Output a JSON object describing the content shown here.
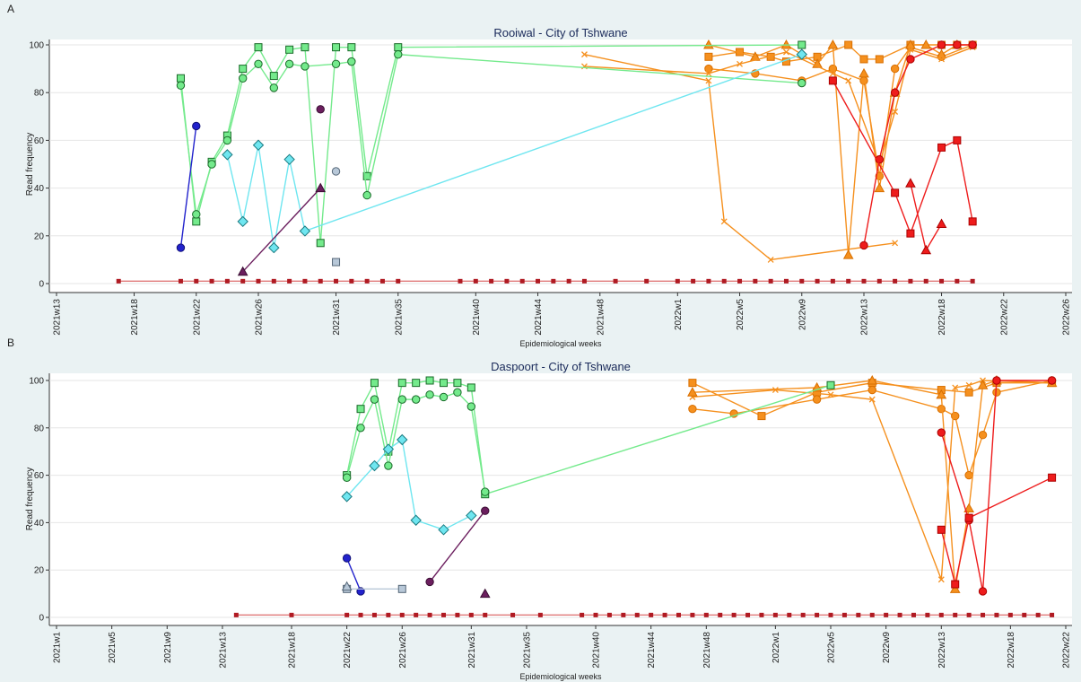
{
  "chart_data": [
    {
      "type": "line",
      "panel": "A",
      "title": "Rooiwal - City of Tshwane",
      "xlabel": "Epidemiological weeks",
      "ylabel": "Read frequency",
      "grid": true,
      "xlim": [
        13,
        78
      ],
      "ylim": [
        0,
        100
      ],
      "yticks": [
        0,
        20,
        40,
        60,
        80,
        100
      ],
      "xticks": [
        {
          "value": 13,
          "label": "2021w13"
        },
        {
          "value": 18,
          "label": "2021w18"
        },
        {
          "value": 22,
          "label": "2021w22"
        },
        {
          "value": 26,
          "label": "2021w26"
        },
        {
          "value": 31,
          "label": "2021w31"
        },
        {
          "value": 35,
          "label": "2021w35"
        },
        {
          "value": 40,
          "label": "2021w40"
        },
        {
          "value": 44,
          "label": "2021w44"
        },
        {
          "value": 48,
          "label": "2021w48"
        },
        {
          "value": 53,
          "label": "2022w1"
        },
        {
          "value": 57,
          "label": "2022w5"
        },
        {
          "value": 61,
          "label": "2022w9"
        },
        {
          "value": 65,
          "label": "2022w13"
        },
        {
          "value": 70,
          "label": "2022w18"
        },
        {
          "value": 74,
          "label": "2022w22"
        },
        {
          "value": 78,
          "label": "2022w26"
        }
      ],
      "series": [
        {
          "color": "#e07a7a",
          "edge": "#b01a22",
          "marker": "dot",
          "x": [
            17,
            21,
            22,
            23,
            24,
            25,
            26,
            27,
            28,
            29,
            30,
            31,
            32,
            33,
            34,
            35,
            39,
            40,
            41,
            42,
            43,
            44,
            45,
            46,
            47,
            49,
            51,
            53,
            54,
            55,
            56,
            57,
            58,
            59,
            60,
            61,
            62,
            63,
            64,
            65,
            66,
            67,
            68,
            69,
            70,
            71,
            72
          ],
          "values": [
            1,
            1,
            1,
            1,
            1,
            1,
            1,
            1,
            1,
            1,
            1,
            1,
            1,
            1,
            1,
            1,
            1,
            1,
            1,
            1,
            1,
            1,
            1,
            1,
            1,
            1,
            1,
            1,
            1,
            1,
            1,
            1,
            1,
            1,
            1,
            1,
            1,
            1,
            1,
            1,
            1,
            1,
            1,
            1,
            1,
            1,
            1
          ]
        },
        {
          "color": "#f5901e",
          "edge": "#d86f00",
          "marker": "x",
          "x": [
            47,
            55,
            56,
            59,
            67
          ],
          "values": [
            96,
            85,
            26,
            10,
            17
          ]
        },
        {
          "color": "#f5901e",
          "edge": "#d86f00",
          "marker": "square",
          "x": [
            55,
            57,
            59,
            60,
            62,
            64,
            65,
            66,
            68,
            70,
            71,
            72
          ],
          "values": [
            95,
            97,
            95,
            93,
            95,
            100,
            94,
            94,
            100,
            100,
            100,
            100
          ]
        },
        {
          "color": "#f5901e",
          "edge": "#d86f00",
          "marker": "circle",
          "x": [
            55,
            58,
            61,
            63,
            65,
            66,
            67,
            68,
            70,
            72
          ],
          "values": [
            90,
            88,
            85,
            90,
            85,
            45,
            90,
            99,
            95,
            100
          ]
        },
        {
          "color": "#f5901e",
          "edge": "#d86f00",
          "marker": "triangle",
          "x": [
            55,
            58,
            60,
            62,
            63,
            64,
            65,
            66,
            67,
            68,
            69,
            70,
            71
          ],
          "values": [
            100,
            95,
            100,
            92,
            100,
            12,
            88,
            40,
            80,
            100,
            100,
            96,
            100
          ]
        },
        {
          "color": "#f5901e",
          "edge": "#d86f00",
          "marker": "x",
          "x": [
            47,
            55,
            57,
            60,
            63,
            64,
            66,
            67,
            68,
            70,
            72
          ],
          "values": [
            91,
            88,
            92,
            97,
            88,
            85,
            50,
            72,
            98,
            94,
            99
          ]
        },
        {
          "color": "#74ea8c",
          "edge": "#1a6b2a",
          "marker": "square",
          "x": [
            21,
            22,
            23,
            24,
            25,
            26,
            27,
            28,
            29,
            30,
            31,
            32,
            33,
            35,
            61
          ],
          "values": [
            86,
            26,
            51,
            62,
            90,
            99,
            87,
            98,
            99,
            17,
            99,
            99,
            45,
            99,
            100
          ]
        },
        {
          "color": "#74ea8c",
          "edge": "#1a6b2a",
          "marker": "circle",
          "x": [
            21,
            22,
            23,
            24,
            25,
            26,
            27,
            28,
            29,
            31,
            32,
            33,
            35,
            61
          ],
          "values": [
            83,
            29,
            50,
            60,
            86,
            92,
            82,
            92,
            91,
            92,
            93,
            37,
            96,
            84
          ]
        },
        {
          "color": "#6fe6f0",
          "edge": "#1a7a80",
          "marker": "diamond",
          "x": [
            24,
            25,
            26,
            27,
            28,
            29,
            61
          ],
          "values": [
            54,
            26,
            58,
            15,
            52,
            22,
            96
          ]
        },
        {
          "color": "#2222cc",
          "edge": "#111177",
          "marker": "circle",
          "x": [
            21,
            22
          ],
          "values": [
            15,
            66
          ]
        },
        {
          "color": "#6b1e5e",
          "edge": "#3a0f33",
          "marker": "triangle",
          "x": [
            25,
            30
          ],
          "values": [
            5,
            40
          ]
        },
        {
          "color": "#6b1e5e",
          "edge": "#3a0f33",
          "marker": "circle",
          "x": [
            30
          ],
          "values": [
            73
          ]
        },
        {
          "color": "#b8c8d8",
          "edge": "#556677",
          "marker": "circle",
          "x": [
            31
          ],
          "values": [
            47
          ]
        },
        {
          "color": "#b8c8d8",
          "edge": "#556677",
          "marker": "square",
          "x": [
            31
          ],
          "values": [
            9
          ]
        },
        {
          "color": "#ee1c1c",
          "edge": "#aa0000",
          "marker": "circle",
          "x": [
            65,
            66,
            67,
            68,
            70,
            71,
            72
          ],
          "values": [
            16,
            52,
            80,
            94,
            100,
            100,
            100
          ]
        },
        {
          "color": "#ee1c1c",
          "edge": "#aa0000",
          "marker": "square",
          "x": [
            63,
            67,
            68,
            70,
            71,
            72
          ],
          "values": [
            85,
            38,
            21,
            57,
            60,
            26
          ]
        },
        {
          "color": "#ee1c1c",
          "edge": "#aa0000",
          "marker": "triangle",
          "x": [
            68,
            69,
            70
          ],
          "values": [
            42,
            14,
            25
          ]
        }
      ]
    },
    {
      "type": "line",
      "panel": "B",
      "title": "Daspoort - City of Tshwane",
      "xlabel": "Epidemiological weeks",
      "ylabel": "Read frequency",
      "grid": true,
      "xlim": [
        1,
        74
      ],
      "ylim": [
        0,
        100
      ],
      "yticks": [
        0,
        20,
        40,
        60,
        80,
        100
      ],
      "xticks": [
        {
          "value": 1,
          "label": "2021w1"
        },
        {
          "value": 5,
          "label": "2021w5"
        },
        {
          "value": 9,
          "label": "2021w9"
        },
        {
          "value": 13,
          "label": "2021w13"
        },
        {
          "value": 18,
          "label": "2021w18"
        },
        {
          "value": 22,
          "label": "2021w22"
        },
        {
          "value": 26,
          "label": "2021w26"
        },
        {
          "value": 31,
          "label": "2021w31"
        },
        {
          "value": 35,
          "label": "2021w35"
        },
        {
          "value": 40,
          "label": "2021w40"
        },
        {
          "value": 44,
          "label": "2021w44"
        },
        {
          "value": 48,
          "label": "2021w48"
        },
        {
          "value": 53,
          "label": "2022w1"
        },
        {
          "value": 57,
          "label": "2022w5"
        },
        {
          "value": 61,
          "label": "2022w9"
        },
        {
          "value": 65,
          "label": "2022w13"
        },
        {
          "value": 70,
          "label": "2022w18"
        },
        {
          "value": 74,
          "label": "2022w22"
        }
      ],
      "series": [
        {
          "color": "#e07a7a",
          "edge": "#b01a22",
          "marker": "dot",
          "x": [
            14,
            18,
            22,
            23,
            24,
            25,
            26,
            27,
            28,
            29,
            30,
            31,
            32,
            34,
            36,
            39,
            40,
            41,
            42,
            43,
            44,
            45,
            46,
            47,
            48,
            49,
            50,
            51,
            52,
            53,
            54,
            55,
            56,
            57,
            58,
            59,
            60,
            61,
            62,
            63,
            64,
            65,
            66,
            67,
            68,
            69,
            70,
            71,
            72,
            73
          ],
          "values": [
            1,
            1,
            1,
            1,
            1,
            1,
            1,
            1,
            1,
            1,
            1,
            1,
            1,
            1,
            1,
            1,
            1,
            1,
            1,
            1,
            1,
            1,
            1,
            1,
            1,
            1,
            1,
            1,
            1,
            1,
            1,
            1,
            1,
            1,
            1,
            1,
            1,
            1,
            1,
            1,
            1,
            1,
            1,
            1,
            1,
            1,
            1,
            1,
            1,
            1
          ]
        },
        {
          "color": "#f5901e",
          "edge": "#d86f00",
          "marker": "square",
          "x": [
            47,
            52,
            56,
            60,
            65,
            67,
            69,
            73
          ],
          "values": [
            99,
            85,
            95,
            99,
            96,
            95,
            99,
            99
          ]
        },
        {
          "color": "#f5901e",
          "edge": "#d86f00",
          "marker": "circle",
          "x": [
            47,
            50,
            56,
            60,
            65,
            66,
            67,
            68,
            69,
            73
          ],
          "values": [
            88,
            86,
            92,
            96,
            88,
            85,
            60,
            77,
            95,
            100
          ]
        },
        {
          "color": "#f5901e",
          "edge": "#d86f00",
          "marker": "x",
          "x": [
            47,
            53,
            57,
            60,
            65,
            66,
            67,
            68,
            73
          ],
          "values": [
            93,
            96,
            94,
            92,
            16,
            97,
            98,
            100,
            99
          ]
        },
        {
          "color": "#f5901e",
          "edge": "#d86f00",
          "marker": "triangle",
          "x": [
            47,
            56,
            60,
            65,
            66,
            67,
            68,
            69,
            73
          ],
          "values": [
            95,
            97,
            100,
            94,
            12,
            46,
            98,
            100,
            99
          ]
        },
        {
          "color": "#74ea8c",
          "edge": "#1a6b2a",
          "marker": "square",
          "x": [
            22,
            23,
            24,
            25,
            26,
            27,
            28,
            29,
            30,
            31,
            32,
            57
          ],
          "values": [
            60,
            88,
            99,
            70,
            99,
            99,
            100,
            99,
            99,
            97,
            52,
            98
          ]
        },
        {
          "color": "#74ea8c",
          "edge": "#1a6b2a",
          "marker": "circle",
          "x": [
            22,
            23,
            24,
            25,
            26,
            27,
            28,
            29,
            30,
            31,
            32
          ],
          "values": [
            59,
            80,
            92,
            64,
            92,
            92,
            94,
            93,
            95,
            89,
            53
          ]
        },
        {
          "color": "#6fe6f0",
          "edge": "#1a7a80",
          "marker": "diamond",
          "x": [
            22,
            24,
            25,
            26,
            27,
            29,
            31
          ],
          "values": [
            51,
            64,
            71,
            75,
            41,
            37,
            43
          ]
        },
        {
          "color": "#2222cc",
          "edge": "#111177",
          "marker": "circle",
          "x": [
            22,
            23
          ],
          "values": [
            25,
            11
          ]
        },
        {
          "color": "#b8c8d8",
          "edge": "#556677",
          "marker": "square",
          "x": [
            22,
            26
          ],
          "values": [
            12,
            12
          ]
        },
        {
          "color": "#b8c8d8",
          "edge": "#556677",
          "marker": "triangle",
          "x": [
            22
          ],
          "values": [
            13
          ]
        },
        {
          "color": "#6b1e5e",
          "edge": "#3a0f33",
          "marker": "circle",
          "x": [
            28,
            32
          ],
          "values": [
            15,
            45
          ]
        },
        {
          "color": "#6b1e5e",
          "edge": "#3a0f33",
          "marker": "triangle",
          "x": [
            32
          ],
          "values": [
            10
          ]
        },
        {
          "color": "#ee1c1c",
          "edge": "#aa0000",
          "marker": "circle",
          "x": [
            65,
            67,
            68,
            69,
            73
          ],
          "values": [
            78,
            41,
            11,
            100,
            100
          ]
        },
        {
          "color": "#ee1c1c",
          "edge": "#aa0000",
          "marker": "square",
          "x": [
            65,
            66,
            67,
            73
          ],
          "values": [
            37,
            14,
            42,
            59
          ]
        }
      ]
    }
  ]
}
